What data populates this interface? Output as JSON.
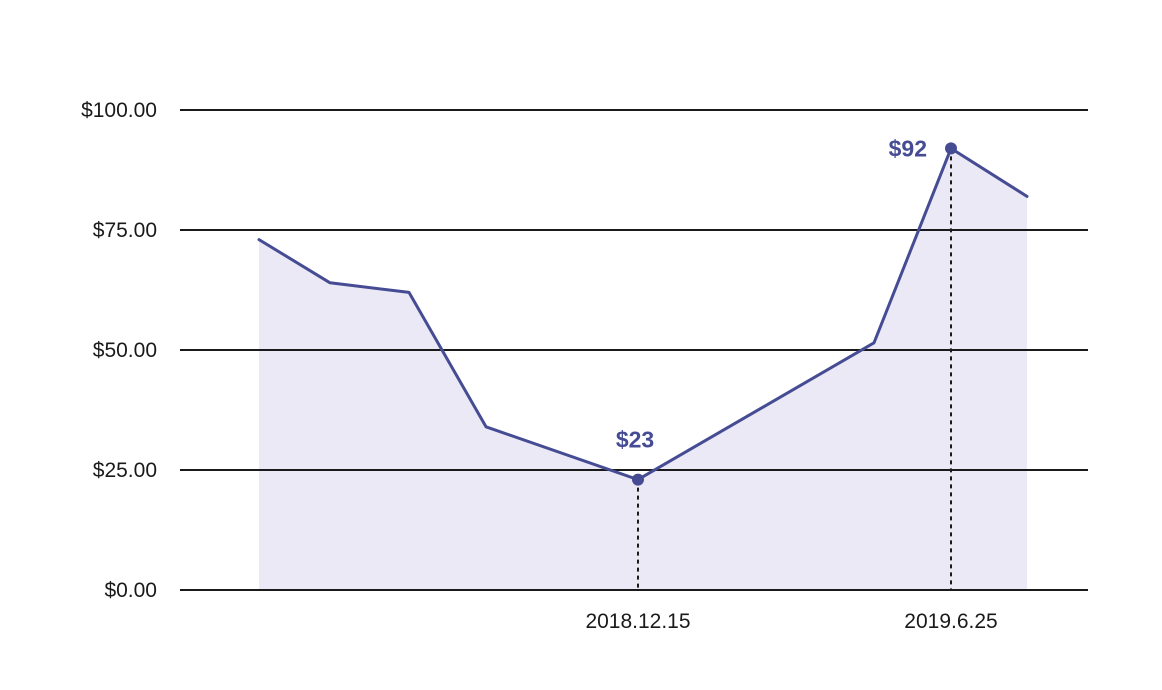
{
  "chart_data": {
    "type": "area",
    "y_ticks": [
      "$0.00",
      "$25.00",
      "$50.00",
      "$75.00",
      "$100.00"
    ],
    "y_tick_values": [
      0,
      25,
      50,
      75,
      100
    ],
    "ylim": [
      0,
      100
    ],
    "grid": true,
    "series": [
      {
        "values": [
          73,
          64,
          62,
          34,
          23,
          51.5,
          92,
          82
        ]
      }
    ],
    "x_tick_labels": [
      {
        "index": 4,
        "label": "2018.12.15"
      },
      {
        "index": 6,
        "label": "2019.6.25"
      }
    ],
    "annotations": [
      {
        "index": 4,
        "label": "$23"
      },
      {
        "index": 6,
        "label": "$92"
      }
    ],
    "colors": {
      "line": "#454c93",
      "fill": "#ebe9f5",
      "grid": "#1a1a1a"
    }
  }
}
